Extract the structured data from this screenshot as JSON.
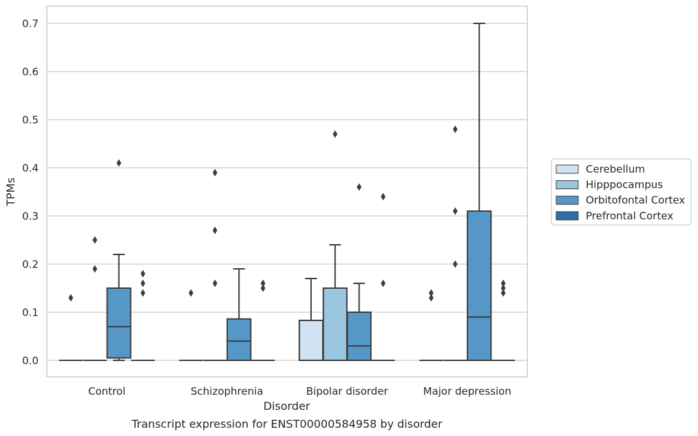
{
  "chart_data": {
    "type": "box",
    "title": "",
    "caption": "Transcript expression for ENST00000584958 by disorder",
    "xlabel": "Disorder",
    "ylabel": "TPMs",
    "ylim": [
      -0.035,
      0.735
    ],
    "yticks": [
      "0.0",
      "0.1",
      "0.2",
      "0.3",
      "0.4",
      "0.5",
      "0.6",
      "0.7"
    ],
    "grid": "horizontal",
    "legend_position": "right",
    "categories": [
      "Control",
      "Schizophrenia",
      "Bipolar disorder",
      "Major depression"
    ],
    "series": [
      {
        "name": "Cerebellum",
        "color": "#d1e2f2",
        "boxes": [
          {
            "q1": 0,
            "median": 0,
            "q3": 0,
            "whisker_low": 0,
            "whisker_high": 0,
            "outliers": [
              0.13
            ]
          },
          {
            "q1": 0,
            "median": 0,
            "q3": 0,
            "whisker_low": 0,
            "whisker_high": 0,
            "outliers": [
              0.14
            ]
          },
          {
            "q1": 0,
            "median": 0,
            "q3": 0.083,
            "whisker_low": 0,
            "whisker_high": 0.17,
            "outliers": []
          },
          {
            "q1": 0,
            "median": 0,
            "q3": 0,
            "whisker_low": 0,
            "whisker_high": 0,
            "outliers": [
              0.13,
              0.14
            ]
          }
        ]
      },
      {
        "name": "Hipppocampus",
        "color": "#9ac6df",
        "boxes": [
          {
            "q1": 0,
            "median": 0,
            "q3": 0,
            "whisker_low": 0,
            "whisker_high": 0,
            "outliers": [
              0.19,
              0.25
            ]
          },
          {
            "q1": 0,
            "median": 0,
            "q3": 0,
            "whisker_low": 0,
            "whisker_high": 0,
            "outliers": [
              0.16,
              0.27,
              0.39
            ]
          },
          {
            "q1": 0,
            "median": 0,
            "q3": 0.15,
            "whisker_low": 0,
            "whisker_high": 0.24,
            "outliers": [
              0.47
            ]
          },
          {
            "q1": 0,
            "median": 0,
            "q3": 0,
            "whisker_low": 0,
            "whisker_high": 0,
            "outliers": [
              0.2,
              0.31,
              0.48
            ]
          }
        ]
      },
      {
        "name": "Orbitofontal Cortex",
        "color": "#5598c7",
        "boxes": [
          {
            "q1": 0.005,
            "median": 0.07,
            "q3": 0.15,
            "whisker_low": 0,
            "whisker_high": 0.22,
            "outliers": [
              0.41
            ]
          },
          {
            "q1": 0,
            "median": 0.04,
            "q3": 0.086,
            "whisker_low": 0,
            "whisker_high": 0.19,
            "outliers": []
          },
          {
            "q1": 0,
            "median": 0.03,
            "q3": 0.1,
            "whisker_low": 0,
            "whisker_high": 0.16,
            "outliers": [
              0.36
            ]
          },
          {
            "q1": 0,
            "median": 0.09,
            "q3": 0.31,
            "whisker_low": 0,
            "whisker_high": 0.7,
            "outliers": []
          }
        ]
      },
      {
        "name": "Prefrontal Cortex",
        "color": "#2e6ea9",
        "boxes": [
          {
            "q1": 0,
            "median": 0,
            "q3": 0,
            "whisker_low": 0,
            "whisker_high": 0,
            "outliers": [
              0.14,
              0.16,
              0.18
            ]
          },
          {
            "q1": 0,
            "median": 0,
            "q3": 0,
            "whisker_low": 0,
            "whisker_high": 0,
            "outliers": [
              0.15,
              0.16
            ]
          },
          {
            "q1": 0,
            "median": 0,
            "q3": 0,
            "whisker_low": 0,
            "whisker_high": 0,
            "outliers": [
              0.16,
              0.34
            ]
          },
          {
            "q1": 0,
            "median": 0,
            "q3": 0,
            "whisker_low": 0,
            "whisker_high": 0,
            "outliers": [
              0.14,
              0.15,
              0.16
            ]
          }
        ]
      }
    ]
  }
}
